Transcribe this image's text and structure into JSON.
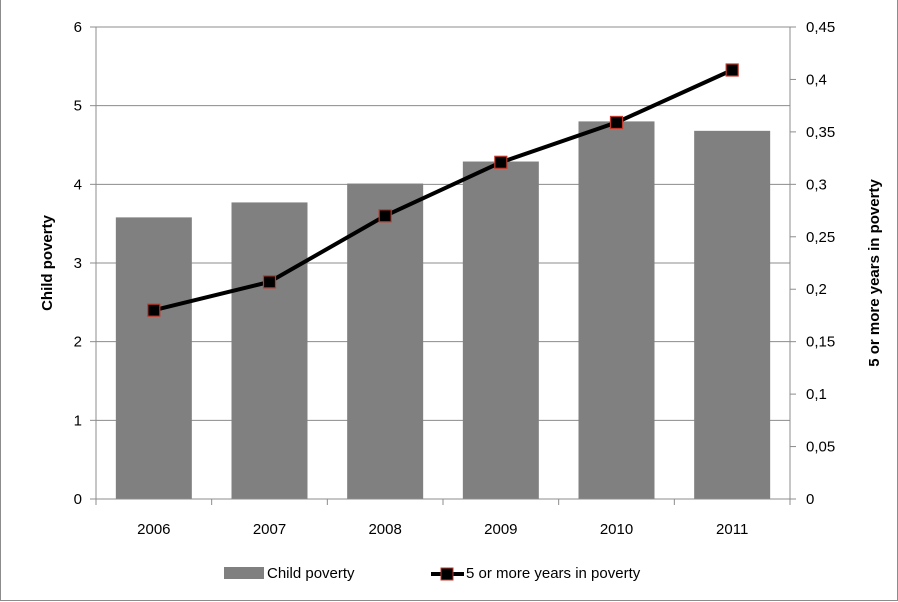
{
  "chart_data": {
    "type": "bar",
    "categories": [
      "2006",
      "2007",
      "2008",
      "2009",
      "2010",
      "2011"
    ],
    "series": [
      {
        "name": "Child poverty",
        "type": "bar",
        "axis": "left",
        "values": [
          3.58,
          3.77,
          4.01,
          4.29,
          4.8,
          4.68
        ],
        "color": "#808080"
      },
      {
        "name": "5 or more years in poverty",
        "type": "line",
        "axis": "right",
        "values": [
          0.18,
          0.207,
          0.27,
          0.321,
          0.359,
          0.409
        ],
        "color": "#000000",
        "marker_fill": "#000000",
        "marker_edge": "#c0392b"
      }
    ],
    "ylabel": "Child poverty",
    "y2label": "5 or more years in poverty",
    "ylim": [
      0,
      6
    ],
    "y2lim": [
      0,
      0.45
    ],
    "yticks": [
      "0",
      "1",
      "2",
      "3",
      "4",
      "5",
      "6"
    ],
    "y2ticks": [
      "0",
      "0,05",
      "0,1",
      "0,15",
      "0,2",
      "0,25",
      "0,3",
      "0,35",
      "0,4",
      "0,45"
    ],
    "grid": true,
    "legend": "bottom"
  }
}
